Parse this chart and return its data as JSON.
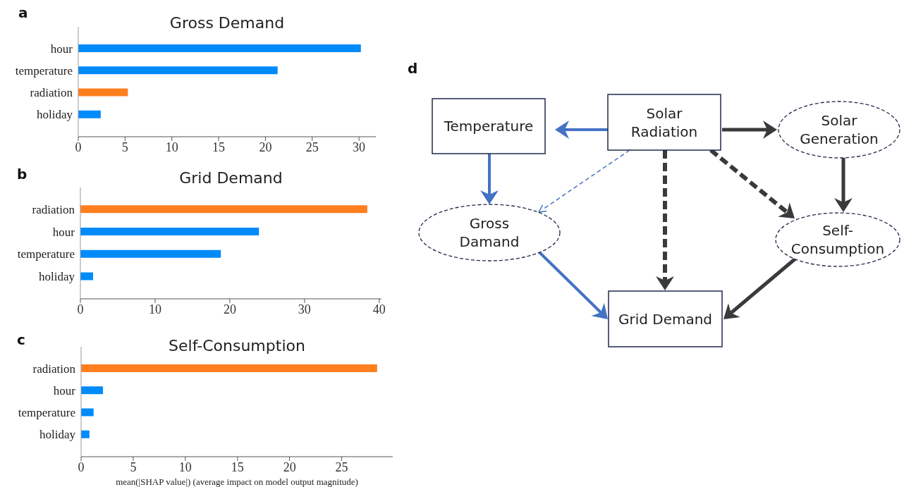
{
  "chart_data": [
    {
      "type": "bar",
      "orientation": "horizontal",
      "title": "Gross Demand",
      "annotations": [
        "a"
      ],
      "categories": [
        "hour",
        "temperature",
        "radiation",
        "holiday"
      ],
      "values": [
        30.2,
        21.3,
        5.3,
        2.4
      ],
      "colors": [
        "#008bfb",
        "#008bfb",
        "#ff7f1f",
        "#008bfb"
      ],
      "xlim": [
        0,
        31.8
      ],
      "xticks": [
        0,
        5,
        10,
        15,
        20,
        25,
        30
      ]
    },
    {
      "type": "bar",
      "orientation": "horizontal",
      "title": "Grid Demand",
      "annotations": [
        "b"
      ],
      "categories": [
        "radiation",
        "hour",
        "temperature",
        "holiday"
      ],
      "values": [
        38.4,
        23.9,
        18.8,
        1.7
      ],
      "colors": [
        "#ff7f1f",
        "#008bfb",
        "#008bfb",
        "#008bfb"
      ],
      "xlim": [
        0,
        40.3
      ],
      "xticks": [
        0,
        10,
        20,
        30,
        40
      ]
    },
    {
      "type": "bar",
      "orientation": "horizontal",
      "title": "Self-Consumption",
      "annotations": [
        "c"
      ],
      "xlabel": "mean(|SHAP value|) (average impact on model output magnitude)",
      "categories": [
        "radiation",
        "hour",
        "temperature",
        "holiday"
      ],
      "values": [
        28.4,
        2.1,
        1.2,
        0.8
      ],
      "colors": [
        "#ff7f1f",
        "#008bfb",
        "#008bfb",
        "#008bfb"
      ],
      "xlim": [
        0,
        29.9
      ],
      "xticks": [
        0,
        5,
        10,
        15,
        20,
        25
      ]
    },
    {
      "type": "other",
      "annotations": [
        "d",
        "Temperature",
        "Solar Radiation",
        "Solar Generation",
        "Gross Damand",
        "Self-Consumption",
        "Grid Demand"
      ]
    }
  ]
}
